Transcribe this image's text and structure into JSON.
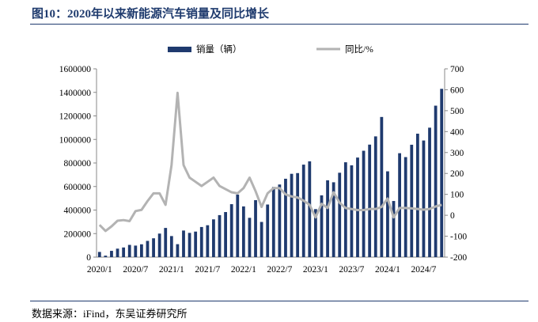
{
  "title": "图10：2020年以来新能源汽车销量及同比增长",
  "source": "数据来源：iFind，东吴证券研究所",
  "chart_data": {
    "type": "bar+line",
    "title": "图10：2020年以来新能源汽车销量及同比增长",
    "x": [
      "2020/1",
      "2020/2",
      "2020/3",
      "2020/4",
      "2020/5",
      "2020/6",
      "2020/7",
      "2020/8",
      "2020/9",
      "2020/10",
      "2020/11",
      "2020/12",
      "2021/1",
      "2021/2",
      "2021/3",
      "2021/4",
      "2021/5",
      "2021/6",
      "2021/7",
      "2021/8",
      "2021/9",
      "2021/10",
      "2021/11",
      "2021/12",
      "2022/1",
      "2022/2",
      "2022/3",
      "2022/4",
      "2022/5",
      "2022/6",
      "2022/7",
      "2022/8",
      "2022/9",
      "2022/10",
      "2022/11",
      "2022/12",
      "2023/1",
      "2023/2",
      "2023/3",
      "2023/4",
      "2023/5",
      "2023/6",
      "2023/7",
      "2023/8",
      "2023/9",
      "2023/10",
      "2023/11",
      "2023/12",
      "2024/1",
      "2024/2",
      "2024/3",
      "2024/4",
      "2024/5",
      "2024/6",
      "2024/7",
      "2024/8",
      "2024/9",
      "2024/10"
    ],
    "xticks": [
      "2020/1",
      "2020/7",
      "2021/1",
      "2021/7",
      "2022/1",
      "2022/7",
      "2023/1",
      "2023/7",
      "2024/1",
      "2024/7"
    ],
    "series": [
      {
        "name": "销量（辆）",
        "type": "bar",
        "axis": "left",
        "color": "#1f3a6e",
        "values": [
          44100,
          12500,
          53400,
          72000,
          82000,
          104000,
          98000,
          109000,
          138000,
          160000,
          200000,
          248000,
          179000,
          110000,
          226000,
          206000,
          217000,
          256000,
          271000,
          321000,
          357000,
          383000,
          450000,
          531000,
          431000,
          334000,
          484000,
          299000,
          447000,
          596000,
          617000,
          666000,
          708000,
          714000,
          786000,
          814000,
          408000,
          525000,
          653000,
          636000,
          717000,
          806000,
          780000,
          846000,
          904000,
          956000,
          1026000,
          1191000,
          729000,
          477000,
          883000,
          850000,
          955000,
          1049000,
          991000,
          1100000,
          1287000,
          1430000
        ]
      },
      {
        "name": "同比/%",
        "type": "line",
        "axis": "right",
        "color": "#b3b3b3",
        "values": [
          -46,
          -75,
          -53,
          -26,
          -23,
          -28,
          20,
          26,
          68,
          105,
          105,
          50,
          240,
          585,
          240,
          180,
          160,
          140,
          160,
          180,
          140,
          125,
          110,
          105,
          130,
          180,
          115,
          40,
          105,
          130,
          130,
          100,
          90,
          85,
          70,
          50,
          -10,
          55,
          35,
          110,
          60,
          35,
          30,
          25,
          25,
          30,
          30,
          40,
          80,
          -10,
          35,
          35,
          33,
          30,
          27,
          30,
          42,
          50
        ]
      }
    ],
    "ylim_left": [
      0,
      1600000
    ],
    "yticks_left": [
      "0",
      "200000",
      "400000",
      "600000",
      "800000",
      "1000000",
      "1200000",
      "1400000",
      "1600000"
    ],
    "ylim_right": [
      -200,
      700
    ],
    "yticks_right": [
      "-200",
      "-100",
      "0",
      "100",
      "200",
      "300",
      "400",
      "500",
      "600",
      "700"
    ],
    "legend_position": "top",
    "grid": false
  }
}
